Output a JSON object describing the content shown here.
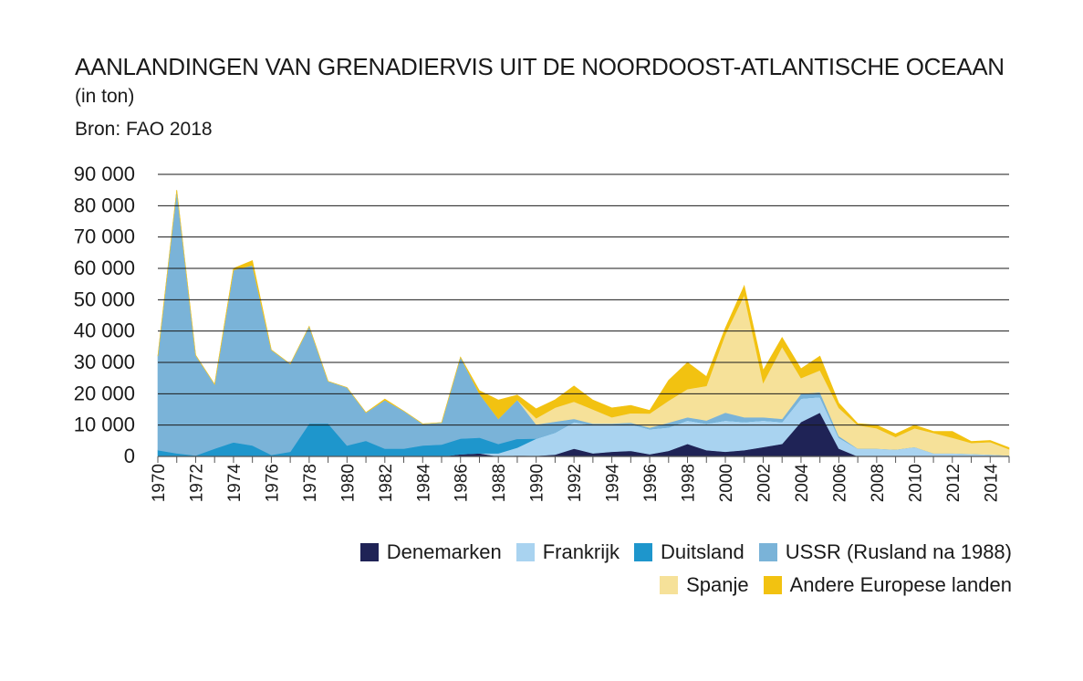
{
  "title": "AANLANDINGEN VAN GRENADIERVIS UIT DE NOORDOOST-ATLANTISCHE OCEAAN",
  "subtitle": "(in ton)",
  "source": "Bron: FAO 2018",
  "chart_data": {
    "type": "area",
    "stacked": true,
    "x": [
      1970,
      1971,
      1972,
      1973,
      1974,
      1975,
      1976,
      1977,
      1978,
      1979,
      1980,
      1981,
      1982,
      1983,
      1984,
      1985,
      1986,
      1987,
      1988,
      1989,
      1990,
      1991,
      1992,
      1993,
      1994,
      1995,
      1996,
      1997,
      1998,
      1999,
      2000,
      2001,
      2002,
      2003,
      2004,
      2005,
      2006,
      2007,
      2008,
      2009,
      2010,
      2011,
      2012,
      2013,
      2014,
      2015
    ],
    "ylim": [
      0,
      90000
    ],
    "yticks": [
      0,
      10000,
      20000,
      30000,
      40000,
      50000,
      60000,
      70000,
      80000,
      90000
    ],
    "ytick_labels": [
      "0",
      "10 000",
      "20 000",
      "30 000",
      "40 000",
      "50 000",
      "60 000",
      "70 000",
      "80 000",
      "90 000"
    ],
    "xticks": [
      1970,
      1972,
      1974,
      1976,
      1978,
      1980,
      1982,
      1984,
      1986,
      1988,
      1990,
      1992,
      1994,
      1996,
      1998,
      2000,
      2002,
      2004,
      2006,
      2008,
      2010,
      2012,
      2014
    ],
    "grid": true,
    "legend_position": "bottom-right",
    "series": [
      {
        "name": "Denemarken",
        "color": "#1f2356",
        "values": [
          0,
          0,
          0,
          0,
          0,
          0,
          0,
          0,
          0,
          0,
          0,
          0,
          0,
          0,
          0,
          0,
          700,
          1000,
          0,
          300,
          200,
          600,
          2500,
          1000,
          1500,
          1800,
          700,
          1800,
          4000,
          2000,
          1500,
          2000,
          3000,
          4000,
          11000,
          14000,
          2500,
          0,
          0,
          0,
          0,
          0,
          0,
          0,
          0,
          0
        ]
      },
      {
        "name": "Frankrijk",
        "color": "#a9d3f0",
        "values": [
          0,
          0,
          0,
          0,
          0,
          0,
          0,
          0,
          0,
          0,
          0,
          0,
          0,
          0,
          0,
          0,
          0,
          0,
          1000,
          2500,
          5500,
          7000,
          8500,
          9000,
          8500,
          8500,
          8000,
          7500,
          7500,
          8500,
          10000,
          9000,
          8500,
          7000,
          7500,
          5000,
          3500,
          2500,
          2500,
          2200,
          3000,
          1000,
          1000,
          800,
          600,
          300
        ]
      },
      {
        "name": "Duitsland",
        "color": "#1e96cc",
        "values": [
          2000,
          1000,
          300,
          2500,
          4500,
          3500,
          500,
          1500,
          10500,
          10500,
          3500,
          5000,
          2500,
          2500,
          3500,
          3800,
          5000,
          5000,
          3000,
          2800,
          0,
          0,
          0,
          0,
          0,
          0,
          0,
          0,
          0,
          0,
          0,
          0,
          0,
          0,
          0,
          0,
          0,
          0,
          0,
          0,
          0,
          0,
          0,
          0,
          0,
          0
        ]
      },
      {
        "name": "USSR (Rusland na 1988)",
        "color": "#7ab3d8",
        "values": [
          30000,
          84000,
          32000,
          20500,
          55000,
          57500,
          33500,
          28000,
          31000,
          13500,
          18500,
          9000,
          15500,
          12000,
          6900,
          7000,
          26000,
          14000,
          8000,
          12500,
          4500,
          3500,
          1000,
          500,
          500,
          500,
          500,
          1500,
          1000,
          1000,
          2500,
          1500,
          1000,
          1000,
          1500,
          1500,
          500,
          0,
          0,
          0,
          0,
          0,
          0,
          0,
          0,
          0
        ]
      },
      {
        "name": "Spanje",
        "color": "#f6e199",
        "values": [
          0,
          0,
          0,
          0,
          0,
          0,
          0,
          0,
          0,
          0,
          0,
          0,
          0,
          0,
          0,
          0,
          0,
          0,
          0,
          0,
          2000,
          4500,
          5500,
          4500,
          2000,
          3000,
          4500,
          7000,
          9000,
          11000,
          25000,
          39000,
          11000,
          23000,
          5000,
          7000,
          9000,
          7500,
          6500,
          4000,
          6000,
          6500,
          5000,
          3500,
          4000,
          2000
        ]
      },
      {
        "name": "Andere Europese landen",
        "color": "#f2c211",
        "values": [
          0,
          0,
          0,
          0,
          500,
          1500,
          0,
          0,
          0,
          0,
          0,
          0,
          300,
          0,
          0,
          0,
          0,
          1000,
          6000,
          1500,
          3000,
          2500,
          5000,
          3000,
          3000,
          2500,
          1000,
          6500,
          8500,
          3000,
          2000,
          3000,
          4000,
          3000,
          3000,
          4500,
          1500,
          500,
          1000,
          1000,
          1000,
          500,
          2000,
          500,
          500,
          500
        ]
      }
    ]
  }
}
